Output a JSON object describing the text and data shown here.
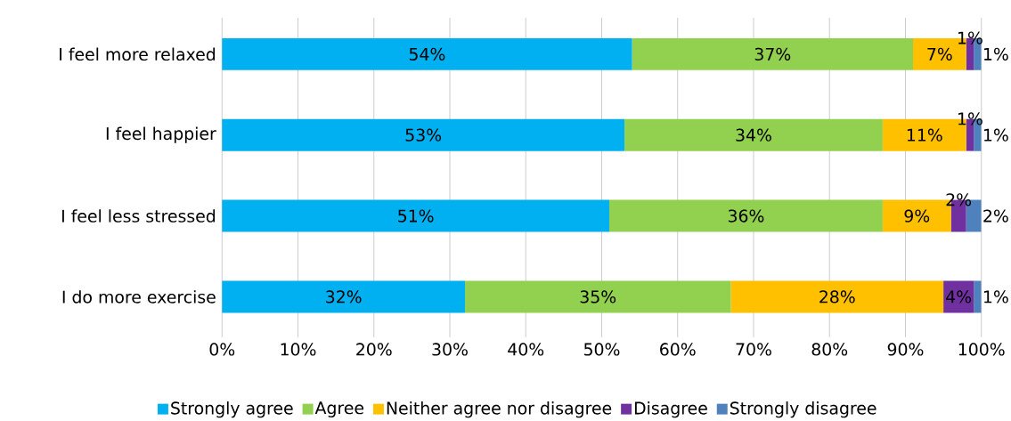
{
  "chart_data": {
    "type": "bar",
    "orientation": "horizontal",
    "stacked": true,
    "categories": [
      "I feel more relaxed",
      "I feel happier",
      "I feel less stressed",
      "I do more exercise"
    ],
    "series": [
      {
        "name": "Strongly agree",
        "color": "#00b0f0",
        "values": [
          54,
          53,
          51,
          32
        ],
        "value_labels": [
          "54%",
          "53%",
          "51%",
          "32%"
        ]
      },
      {
        "name": "Agree",
        "color": "#92d050",
        "values": [
          37,
          34,
          36,
          35
        ],
        "value_labels": [
          "37%",
          "34%",
          "36%",
          "35%"
        ]
      },
      {
        "name": "Neither agree nor disagree",
        "color": "#ffc000",
        "values": [
          7,
          11,
          9,
          28
        ],
        "value_labels": [
          "7%",
          "11%",
          "9%",
          "28%"
        ]
      },
      {
        "name": "Disagree",
        "color": "#7030a0",
        "values": [
          1,
          1,
          2,
          4
        ],
        "value_labels": [
          "1%",
          "1%",
          "2%",
          "4%"
        ]
      },
      {
        "name": "Strongly disagree",
        "color": "#4f81bd",
        "values": [
          1,
          1,
          2,
          1
        ],
        "value_labels": [
          "1%",
          "1%",
          "2%",
          "1%"
        ]
      }
    ],
    "xlim": [
      0,
      100
    ],
    "xticks": [
      {
        "value": 0,
        "label": "0%"
      },
      {
        "value": 10,
        "label": "10%"
      },
      {
        "value": 20,
        "label": "20%"
      },
      {
        "value": 30,
        "label": "30%"
      },
      {
        "value": 40,
        "label": "40%"
      },
      {
        "value": 50,
        "label": "50%"
      },
      {
        "value": 60,
        "label": "60%"
      },
      {
        "value": 70,
        "label": "70%"
      },
      {
        "value": 80,
        "label": "80%"
      },
      {
        "value": 90,
        "label": "90%"
      },
      {
        "value": 100,
        "label": "100%"
      }
    ],
    "grid": "x",
    "legend": "bottom"
  }
}
